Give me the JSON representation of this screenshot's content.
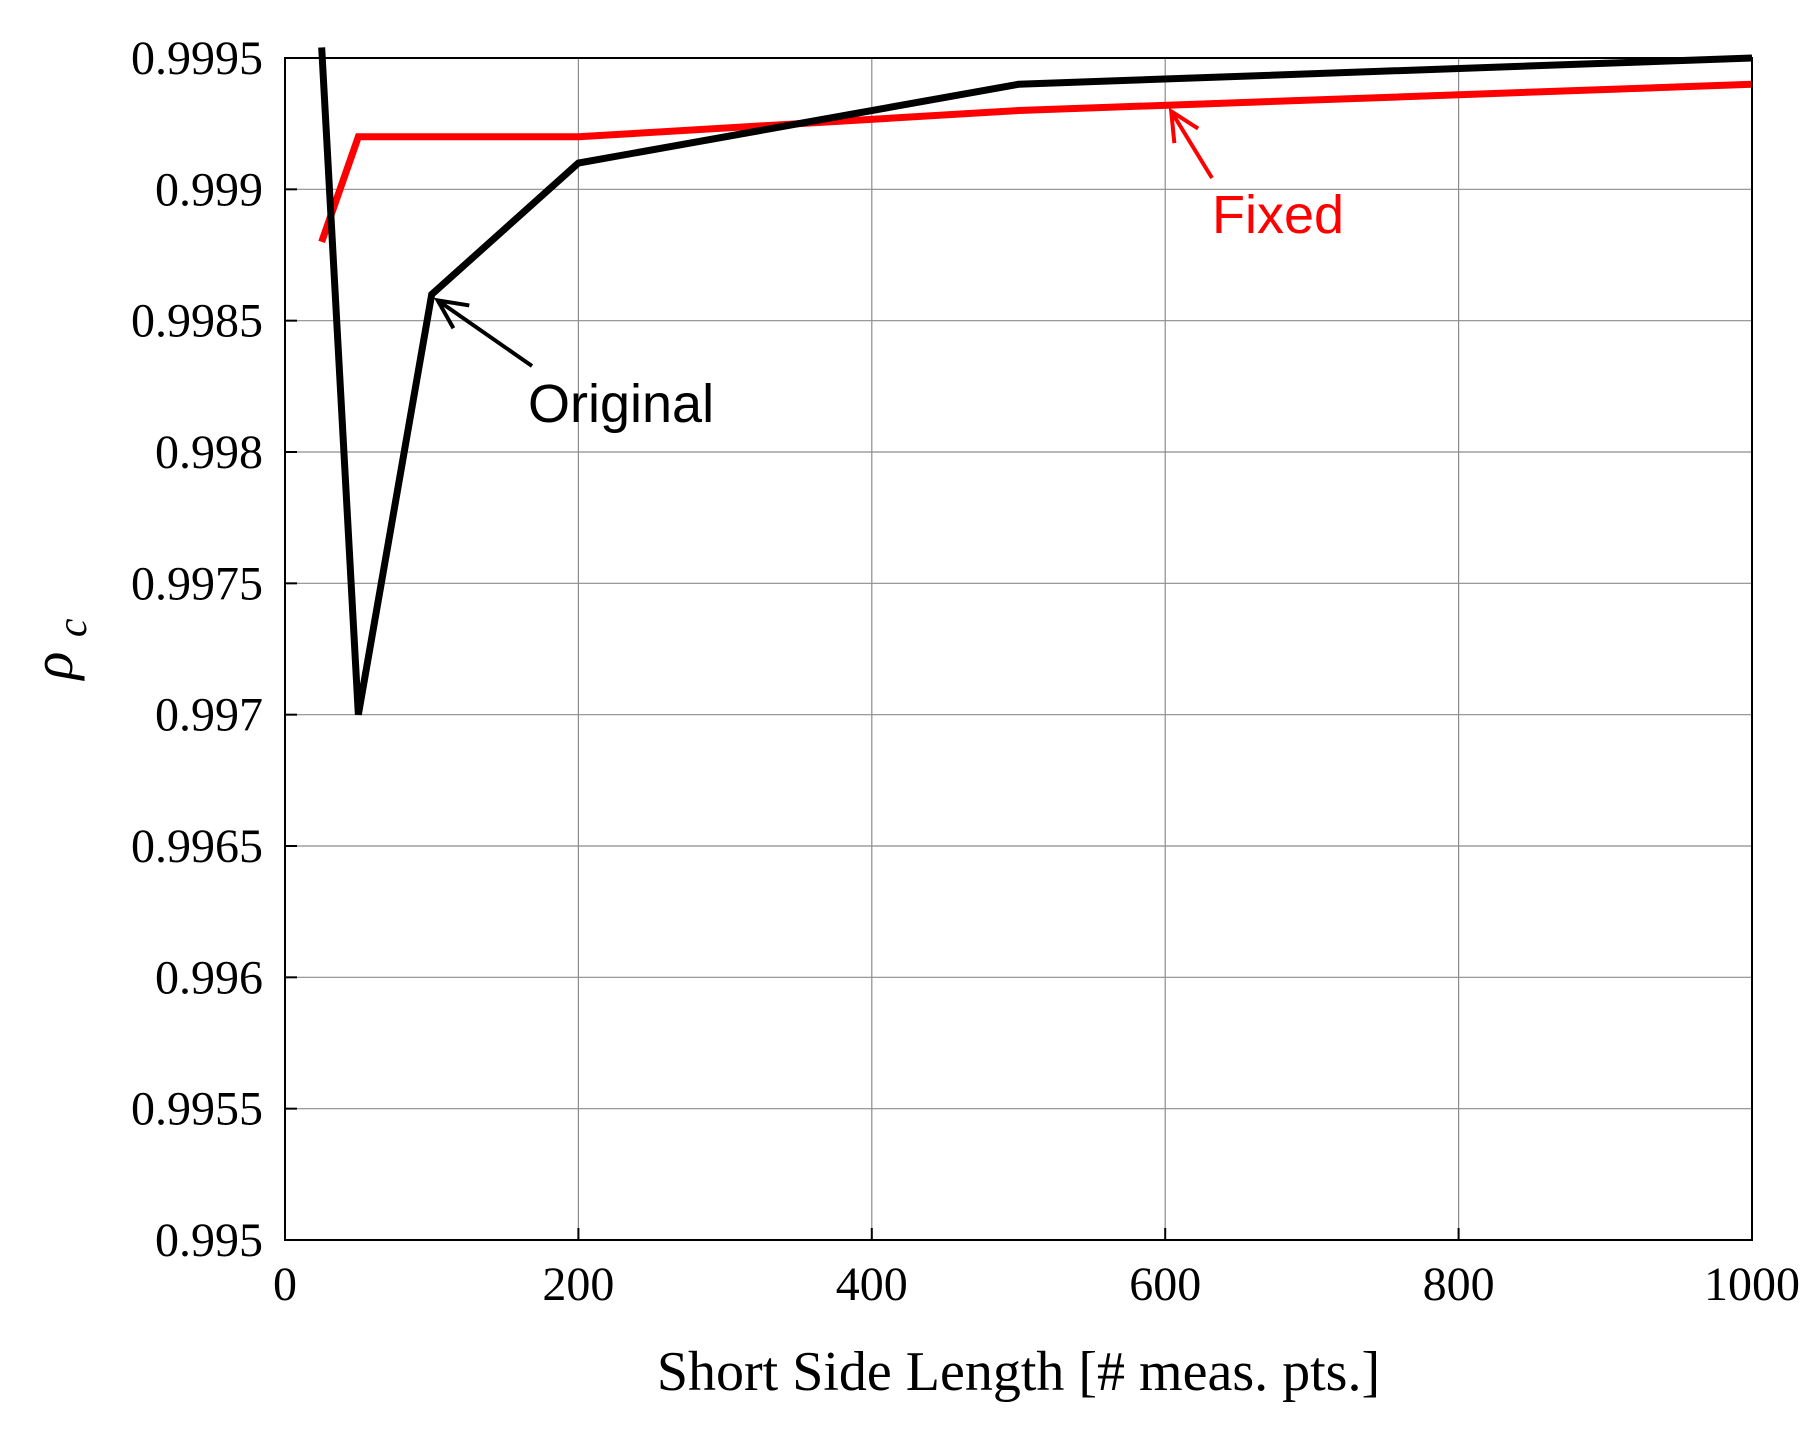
{
  "chart_data": {
    "type": "line",
    "xlabel": "Short Side Length [# meas. pts.]",
    "ylabel": "ρ",
    "ylabel_subscript": "c",
    "xlim": [
      0,
      1000
    ],
    "ylim": [
      0.995,
      0.9995
    ],
    "x_ticks": [
      0,
      200,
      400,
      600,
      800,
      1000
    ],
    "x_tick_labels": [
      "0",
      "200",
      "400",
      "600",
      "800",
      "1000"
    ],
    "y_ticks": [
      0.995,
      0.9955,
      0.996,
      0.9965,
      0.997,
      0.9975,
      0.998,
      0.9985,
      0.999,
      0.9995
    ],
    "y_tick_labels": [
      "0.995",
      "0.9955",
      "0.996",
      "0.9965",
      "0.997",
      "0.9975",
      "0.998",
      "0.9985",
      "0.999",
      "0.9995"
    ],
    "grid": true,
    "series": [
      {
        "name": "Original",
        "color": "#000000",
        "x": [
          25,
          50,
          100,
          200,
          500,
          1000
        ],
        "y": [
          0.99954,
          0.997,
          0.9986,
          0.9991,
          0.9994,
          0.9995
        ]
      },
      {
        "name": "Fixed",
        "color": "#ff0000",
        "x": [
          25,
          50,
          100,
          200,
          500,
          1000
        ],
        "y": [
          0.9988,
          0.9992,
          0.9992,
          0.9992,
          0.9993,
          0.9994
        ]
      }
    ],
    "annotations": [
      {
        "text": "Original",
        "color": "#000000",
        "points_to": [
          100,
          0.9986
        ]
      },
      {
        "text": "Fixed",
        "color": "#ff0000",
        "points_to": [
          600,
          0.99932
        ]
      }
    ]
  }
}
